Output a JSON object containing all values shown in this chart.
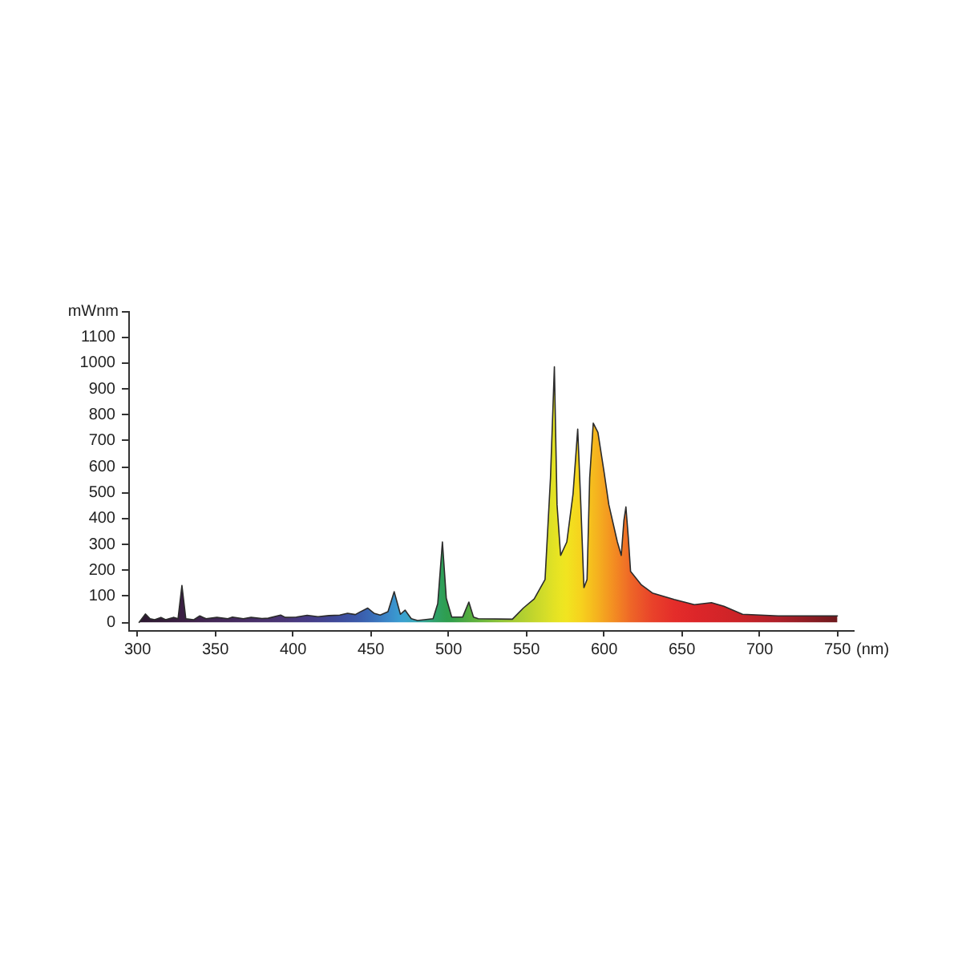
{
  "chart_data": {
    "type": "area",
    "xlabel": "(nm)",
    "ylabel": "mWnm",
    "x": [
      301,
      305,
      308,
      311,
      315,
      318,
      323,
      326,
      328.5,
      331,
      336,
      340,
      344,
      351,
      358,
      361,
      368,
      373,
      380,
      384,
      392,
      395,
      402,
      409,
      416,
      423,
      430,
      435,
      440,
      443,
      448,
      452,
      456,
      461,
      465,
      469,
      472,
      476,
      480,
      490,
      493,
      496,
      498.5,
      502,
      509,
      513,
      516,
      519,
      541,
      548,
      555,
      562,
      565.5,
      568,
      569.7,
      572,
      576,
      580,
      583,
      585,
      587,
      589,
      590.7,
      593,
      596,
      600,
      603,
      608.5,
      611,
      612.7,
      614,
      615.5,
      617,
      624,
      631,
      645,
      658,
      669,
      677,
      689,
      712,
      750
    ],
    "series": [
      {
        "color": "#2b2b2b",
        "colors": [
          "#2b1830",
          "#2d1932",
          "#2f1a34",
          "#311b36",
          "#331c39",
          "#351d3b",
          "#381e40",
          "#3a1f42",
          "#3b1f44",
          "#3c2046",
          "#3e2249",
          "#40244f",
          "#422652",
          "#442858",
          "#45295c",
          "#452a5e",
          "#472d64",
          "#482f68",
          "#49316d",
          "#49326f",
          "#4a3575",
          "#4a3677",
          "#483980",
          "#463b85",
          "#44408c",
          "#414694",
          "#3e4c9c",
          "#3d52a2",
          "#3c58a8",
          "#3b5dac",
          "#3a67b4",
          "#3a70ba",
          "#3a7bc1",
          "#3a88c9",
          "#3a93cd",
          "#3a9ed1",
          "#3aa2cd",
          "#39a5c0",
          "#38a8b0",
          "#30a070",
          "#2fa064",
          "#2f9f58",
          "#2e9e50",
          "#329f4b",
          "#47a744",
          "#54ac40",
          "#5cb03e",
          "#63b33d",
          "#a4ca34",
          "#b2d030",
          "#c4d62c",
          "#d4dd29",
          "#dde026",
          "#e3e224",
          "#e6e323",
          "#ebe522",
          "#f1e420",
          "#f3dc1f",
          "#f5d61e",
          "#f6d21e",
          "#f6cc1e",
          "#f6c61e",
          "#f6c21e",
          "#f5ba1e",
          "#f5b11f",
          "#f4a220",
          "#f49821",
          "#f28523",
          "#f17c24",
          "#f07626",
          "#f07226",
          "#ef6c26",
          "#ee6627",
          "#eb5429",
          "#e9422a",
          "#e42d2a",
          "#dd2629",
          "#d72529",
          "#d22428",
          "#c92328",
          "#ae202a",
          "#6e1a1e"
        ],
        "values": [
          0,
          32,
          14,
          10,
          19,
          10,
          19,
          14,
          142,
          14,
          10,
          25,
          14,
          19,
          14,
          20,
          14,
          19,
          15,
          16,
          28,
          19,
          20,
          27,
          22,
          26,
          28,
          35,
          30,
          40,
          55,
          35,
          28,
          41,
          118,
          31,
          47,
          14,
          7,
          14,
          72,
          310,
          93,
          20,
          20,
          78,
          20,
          14,
          12,
          55,
          90,
          165,
          557,
          985,
          454,
          258,
          310,
          495,
          745,
          454,
          134,
          165,
          557,
          768,
          732,
          578,
          454,
          310,
          258,
          392,
          445,
          330,
          196,
          144,
          113,
          88,
          68,
          76,
          62,
          31,
          25,
          25
        ]
      }
    ],
    "xlim": [
      294,
      760
    ],
    "ylim": [
      -30,
      1200
    ],
    "xticks": [
      300,
      350,
      400,
      450,
      500,
      550,
      600,
      650,
      700,
      750
    ],
    "yticks": [
      0,
      100,
      200,
      300,
      400,
      500,
      600,
      700,
      800,
      900,
      1000,
      1100,
      {
        "value": 1200,
        "label": null
      }
    ],
    "marker": "none"
  }
}
